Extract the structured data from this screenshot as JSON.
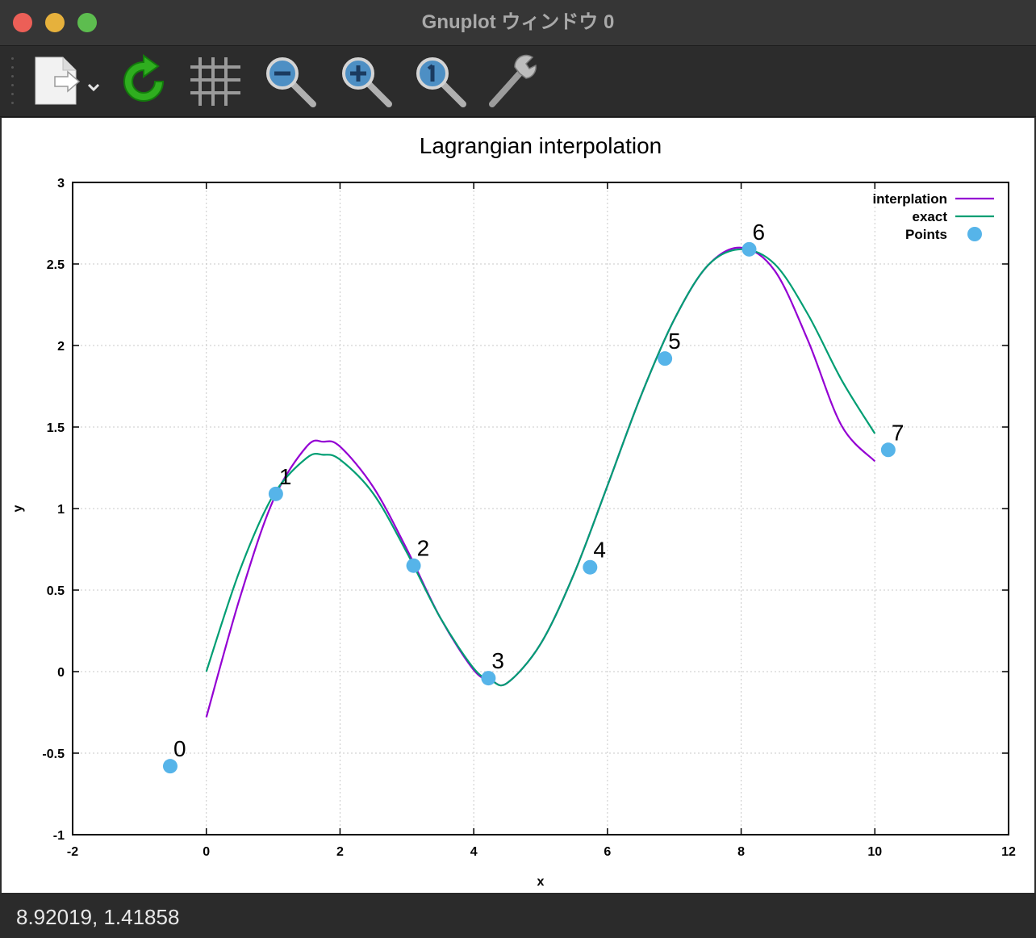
{
  "window": {
    "title": "Gnuplot ウィンドウ 0"
  },
  "toolbar": {
    "items": [
      {
        "name": "export-icon"
      },
      {
        "name": "replot-icon"
      },
      {
        "name": "grid-icon"
      },
      {
        "name": "zoom-out-icon"
      },
      {
        "name": "zoom-in-icon"
      },
      {
        "name": "zoom-reset-icon"
      },
      {
        "name": "settings-wrench-icon"
      }
    ]
  },
  "status": {
    "coords": "8.92019,  1.41858"
  },
  "colors": {
    "interpolation": "#9400d3",
    "exact": "#009e73",
    "points": "#56b4e9"
  },
  "chart_data": {
    "type": "line",
    "title": "Lagrangian interpolation",
    "xlabel": "x",
    "ylabel": "y",
    "xlim": [
      -2,
      12
    ],
    "ylim": [
      -1,
      3
    ],
    "xticks": [
      "-2",
      "0",
      "2",
      "4",
      "6",
      "8",
      "10",
      "12"
    ],
    "yticks": [
      "-1",
      "-0.5",
      "0",
      "0.5",
      "1",
      "1.5",
      "2",
      "2.5",
      "3"
    ],
    "grid": true,
    "legend_position": "top-right",
    "points": {
      "name": "Points",
      "x": [
        -0.54,
        1.04,
        3.1,
        4.22,
        5.74,
        6.86,
        8.12,
        10.2
      ],
      "y": [
        -0.58,
        1.09,
        0.65,
        -0.04,
        0.64,
        1.92,
        2.59,
        1.36
      ],
      "labels": [
        "0",
        "1",
        "2",
        "3",
        "4",
        "5",
        "6",
        "7"
      ]
    },
    "series": [
      {
        "name": "interplation",
        "x": [
          0,
          0.5,
          1.0,
          1.5,
          1.75,
          2.0,
          2.5,
          3.0,
          3.5,
          4.0,
          4.25,
          4.5,
          5.0,
          5.5,
          6.0,
          6.5,
          7.0,
          7.5,
          8.0,
          8.5,
          9.0,
          9.5,
          10.0
        ],
        "y": [
          -0.28,
          0.45,
          1.05,
          1.38,
          1.41,
          1.38,
          1.13,
          0.75,
          0.33,
          0.01,
          -0.05,
          -0.07,
          0.17,
          0.6,
          1.14,
          1.69,
          2.16,
          2.49,
          2.6,
          2.46,
          2.03,
          1.51,
          1.29
        ]
      },
      {
        "name": "exact",
        "x": [
          0,
          0.5,
          1.0,
          1.5,
          1.75,
          2.0,
          2.5,
          3.0,
          3.5,
          4.0,
          4.25,
          4.5,
          5.0,
          5.5,
          6.0,
          6.5,
          7.0,
          7.5,
          8.0,
          8.5,
          9.0,
          9.5,
          10.0
        ],
        "y": [
          0.0,
          0.62,
          1.08,
          1.31,
          1.33,
          1.3,
          1.09,
          0.73,
          0.33,
          0.02,
          -0.05,
          -0.07,
          0.17,
          0.6,
          1.14,
          1.69,
          2.16,
          2.49,
          2.59,
          2.5,
          2.19,
          1.79,
          1.46
        ]
      }
    ]
  }
}
